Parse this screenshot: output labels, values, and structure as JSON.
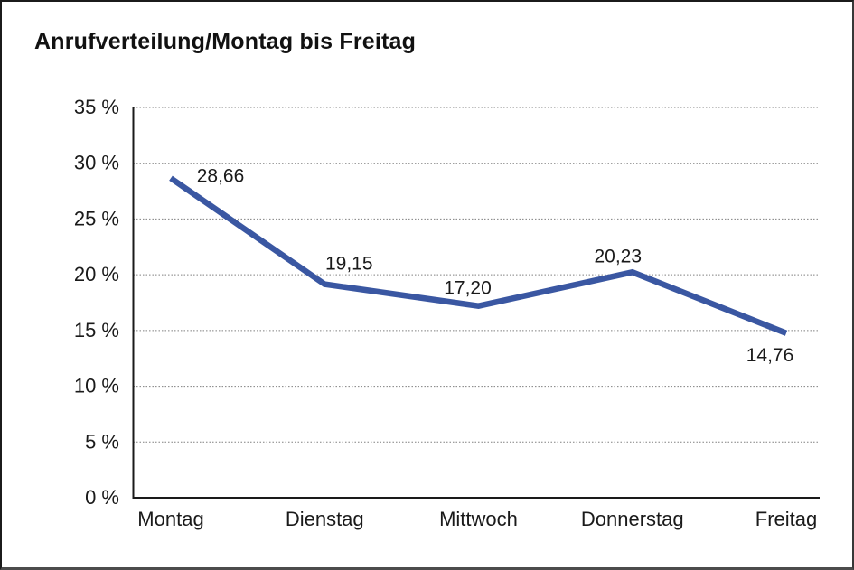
{
  "window": {
    "title": "Anrufverteilung/Montag bis Freitag"
  },
  "chart_data": {
    "type": "line",
    "title": "Anrufverteilung/Montag bis Freitag",
    "categories": [
      "Montag",
      "Dienstag",
      "Mittwoch",
      "Donnerstag",
      "Freitag"
    ],
    "series": [
      {
        "name": "Anrufverteilung",
        "values": [
          28.66,
          19.15,
          17.2,
          20.23,
          14.76
        ],
        "point_labels": [
          "28,66",
          "19,15",
          "17,20",
          "20,23",
          "14,76"
        ]
      }
    ],
    "xlabel": "",
    "ylabel": "",
    "ylim": [
      0,
      35
    ],
    "y_tick_step": 5,
    "y_tick_labels": [
      "0 %",
      "5 %",
      "10 %",
      "15 %",
      "20 %",
      "25 %",
      "30 %",
      "35 %"
    ],
    "grid": "horizontal-dotted",
    "legend": "none",
    "markers": "none",
    "colors": {
      "line": "#3A57A2",
      "axis": "#1A1A1A",
      "grid": "#808080",
      "text": "#1A1A1A",
      "background": "#FFFFFF"
    }
  }
}
